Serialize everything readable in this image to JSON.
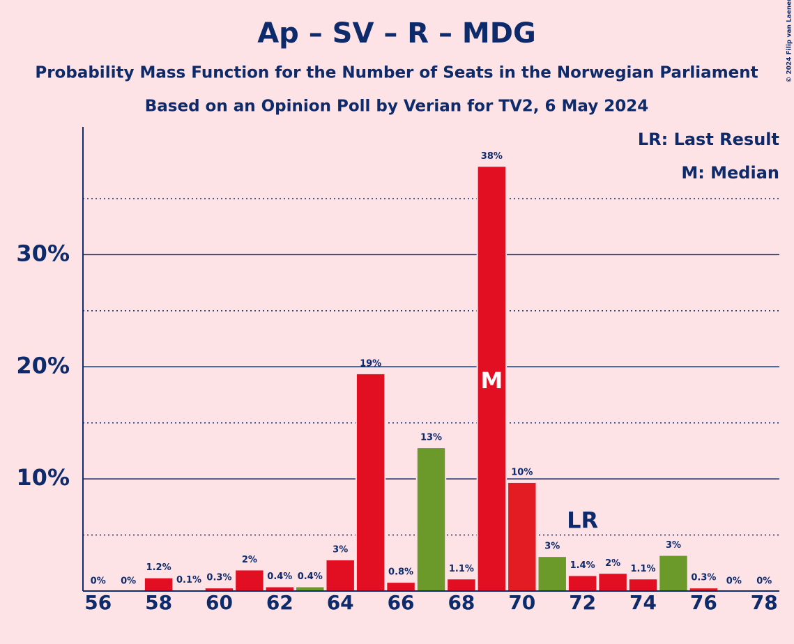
{
  "copyright": "© 2024 Filip van Laenen",
  "chart_data": {
    "type": "bar",
    "title": "Ap – SV – R – MDG",
    "subtitle": [
      "Probability Mass Function for the Number of Seats in the Norwegian Parliament",
      "Based on an Opinion Poll by Verian for TV2, 6 May 2024"
    ],
    "x": [
      56,
      57,
      58,
      59,
      60,
      61,
      62,
      63,
      64,
      65,
      66,
      67,
      68,
      69,
      70,
      71,
      72,
      73,
      74,
      75,
      76,
      77,
      78
    ],
    "values": [
      0,
      0,
      1.2,
      0.1,
      0.3,
      1.9,
      0.4,
      0.4,
      2.8,
      19.4,
      0.8,
      12.8,
      1.1,
      37.9,
      9.7,
      3.1,
      1.4,
      1.6,
      1.1,
      3.2,
      0.3,
      0,
      0
    ],
    "value_labels": [
      "0%",
      "0%",
      "1.2%",
      "0.1%",
      "0.3%",
      "2%",
      "0.4%",
      "0.4%",
      "3%",
      "19%",
      "0.8%",
      "13%",
      "1.1%",
      "38%",
      "10%",
      "3%",
      "1.4%",
      "2%",
      "1.1%",
      "3%",
      "0.3%",
      "0%",
      "0%"
    ],
    "colors": [
      "#e20e21",
      "#e20e21",
      "#e20e21",
      "#e20e21",
      "#e20e21",
      "#e20e21",
      "#e20e21",
      "#6b9a2a",
      "#e20e21",
      "#e20e21",
      "#e20e21",
      "#6b9a2a",
      "#e20e21",
      "#e20e21",
      "#e31c23",
      "#6b9a2a",
      "#e20e21",
      "#e20e21",
      "#e20e21",
      "#6b9a2a",
      "#e31c23",
      "#e20e21",
      "#e20e21"
    ],
    "xlim": [
      55.5,
      78.5
    ],
    "xticks": [
      56,
      58,
      60,
      62,
      64,
      66,
      68,
      70,
      72,
      74,
      76,
      78
    ],
    "ylim": [
      0,
      41.4
    ],
    "yticks": [
      {
        "value": 10,
        "label": "10%"
      },
      {
        "value": 20,
        "label": "20%"
      },
      {
        "value": 30,
        "label": "30%"
      }
    ],
    "minor_yticks": [
      5,
      15,
      25,
      35
    ],
    "grid": true,
    "legend_corner": "top-right",
    "legend_items": [
      "LR: Last Result",
      "M: Median"
    ],
    "annotations": [
      {
        "x": 69,
        "text": "M"
      },
      {
        "x": 72,
        "text": "LR"
      }
    ]
  }
}
